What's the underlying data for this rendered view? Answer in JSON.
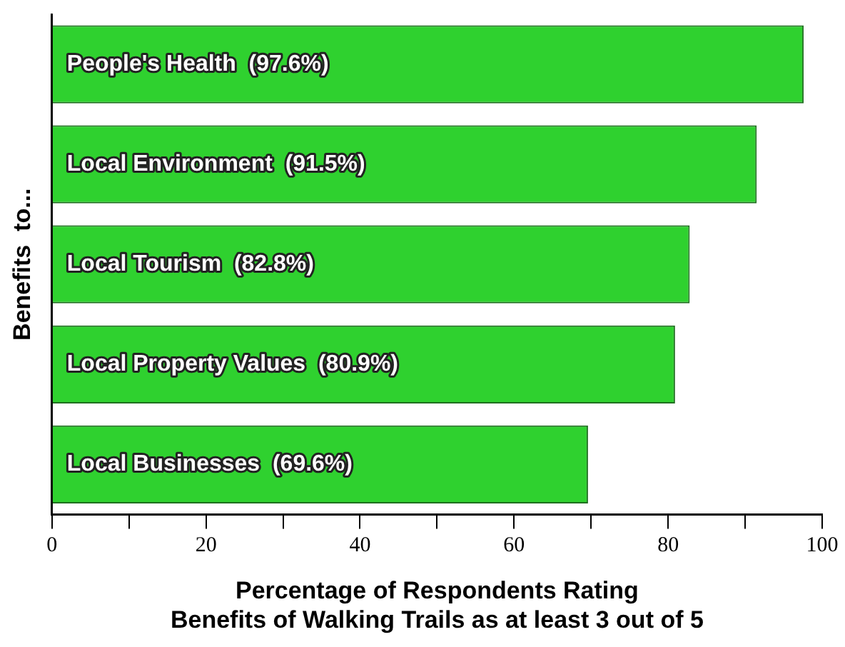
{
  "chart_data": {
    "type": "bar",
    "orientation": "horizontal",
    "ylabel": "Benefits  to...",
    "xlabel": "Percentage of Respondents Rating\nBenefits of Walking Trails as at least 3 out of 5",
    "categories": [
      "People's Health",
      "Local Environment",
      "Local Tourism",
      "Local Property Values",
      "Local Businesses"
    ],
    "values": [
      97.6,
      91.5,
      82.8,
      80.9,
      69.6
    ],
    "value_labels": [
      "(97.6%)",
      "(91.5%)",
      "(82.8%)",
      "(80.9%)",
      "(69.6%)"
    ],
    "color": "#2fd12f",
    "xlim": [
      0,
      100
    ],
    "xticks": [
      0,
      {
        "value": 10,
        "label": null
      },
      20,
      {
        "value": 30,
        "label": null
      },
      40,
      {
        "value": 50,
        "label": null
      },
      60,
      {
        "value": 70,
        "label": null
      },
      80,
      {
        "value": 90,
        "label": null
      },
      100
    ],
    "grid": false,
    "legend": false
  }
}
